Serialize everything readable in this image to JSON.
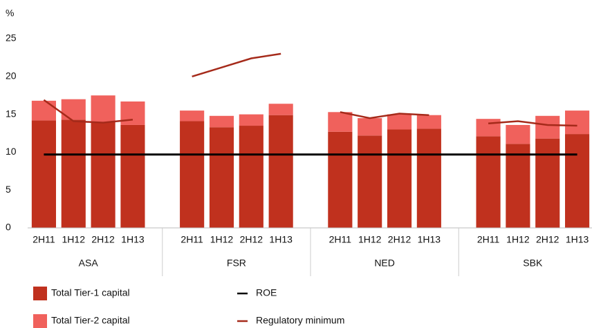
{
  "chart_data": {
    "type": "bar",
    "y_axis_label": "%",
    "categories": [
      "2H11",
      "1H12",
      "2H12",
      "1H13",
      "2H11",
      "1H12",
      "2H12",
      "1H13",
      "2H11",
      "1H12",
      "2H12",
      "1H13",
      "2H11",
      "1H12",
      "2H12",
      "1H13"
    ],
    "groups": [
      "ASA",
      "FSR",
      "NED",
      "SBK"
    ],
    "stacked": true,
    "grid": false,
    "ylim": [
      0,
      25
    ],
    "yticks": [
      0,
      5,
      10,
      15,
      20,
      25
    ],
    "series": [
      {
        "name": "Total Tier-1 capital",
        "color": "#c0311e",
        "kind": "bar",
        "values": [
          14.2,
          14.3,
          14.0,
          13.6,
          14.1,
          13.3,
          13.5,
          14.9,
          12.7,
          12.2,
          13.0,
          13.1,
          12.1,
          11.1,
          11.8,
          12.4
        ]
      },
      {
        "name": "Total Tier-2 capital",
        "color": "#f0615c",
        "kind": "bar",
        "values": [
          2.6,
          2.7,
          3.5,
          3.1,
          1.4,
          1.5,
          1.5,
          1.5,
          2.6,
          2.3,
          2.0,
          1.8,
          2.3,
          2.5,
          3.0,
          3.1
        ]
      },
      {
        "name": "ROE",
        "color": "#000000",
        "kind": "line",
        "continuous": true,
        "values": [
          9.7,
          9.7,
          9.7,
          9.7,
          9.7,
          9.7,
          9.7,
          9.7,
          9.7,
          9.7,
          9.7,
          9.7,
          9.7,
          9.7,
          9.7,
          9.7
        ]
      },
      {
        "name": "Regulatory minimum",
        "color": "#a52a1a",
        "kind": "line",
        "continuous": false,
        "values": [
          16.9,
          14.1,
          13.9,
          14.3,
          20.0,
          21.2,
          22.4,
          23.0,
          15.3,
          14.5,
          15.1,
          14.9,
          13.8,
          14.1,
          13.6,
          13.5
        ]
      }
    ]
  }
}
